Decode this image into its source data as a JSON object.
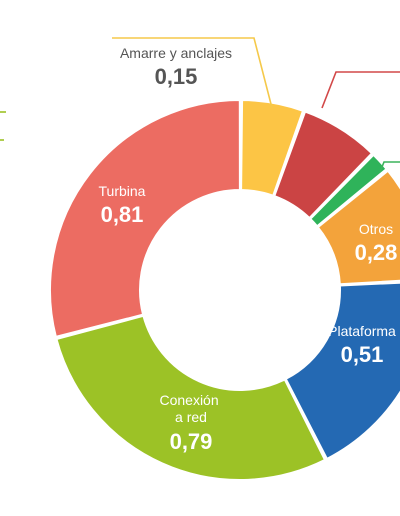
{
  "chart_data": {
    "type": "pie",
    "style": "donut",
    "slices": [
      {
        "label": "Amarre y anclajes",
        "value": 0.15,
        "color": "#fcc545",
        "label_color": "#555555",
        "value_color": "#555555"
      },
      {
        "label": "",
        "value": 0.19,
        "color": "#cb4444"
      },
      {
        "label": "",
        "value": 0.05,
        "color": "#2fb35a"
      },
      {
        "label": "Otros",
        "value": 0.28,
        "color": "#f3a33b",
        "label_color": "#ffffff",
        "value_color": "#ffffff"
      },
      {
        "label": "Plataforma",
        "value": 0.51,
        "color": "#2469b3",
        "label_color": "#ffffff",
        "value_color": "#ffffff"
      },
      {
        "label": "Conexión a red",
        "value": 0.79,
        "color": "#9cc226",
        "label_color": "#ffffff",
        "value_color": "#ffffff"
      },
      {
        "label": "Turbina",
        "value": 0.81,
        "color": "#ec6c62",
        "label_color": "#ffffff",
        "value_color": "#ffffff"
      }
    ],
    "leader_colors": {
      "amarre": "#f5c94a",
      "red_slice": "#d24848",
      "green_slice": "#3cb35c",
      "left_edge": "#9cc226"
    }
  }
}
